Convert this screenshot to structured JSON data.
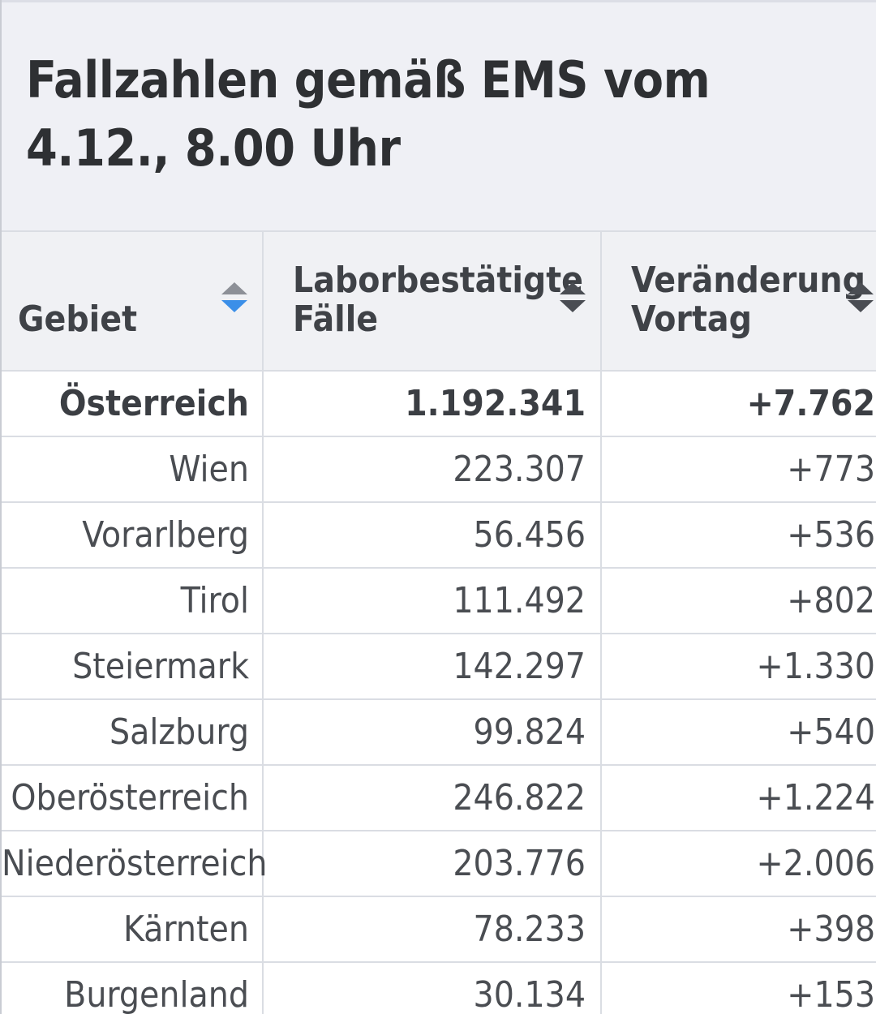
{
  "title": "Fallzahlen gemäß EMS vom 4.12., 8.00 Uhr",
  "table": {
    "headers": {
      "gebiet": "Gebiet",
      "faelle": "Laborbestätigte Fälle",
      "veraenderung": "Veränderung Vortag"
    },
    "sort": {
      "column": "gebiet",
      "direction": "descending",
      "active_color": "#3b8fe8"
    },
    "rows": [
      {
        "gebiet": "Österreich",
        "faelle": "1.192.341",
        "veraenderung": "+7.762",
        "bold": true
      },
      {
        "gebiet": "Wien",
        "faelle": "223.307",
        "veraenderung": "+773"
      },
      {
        "gebiet": "Vorarlberg",
        "faelle": "56.456",
        "veraenderung": "+536"
      },
      {
        "gebiet": "Tirol",
        "faelle": "111.492",
        "veraenderung": "+802"
      },
      {
        "gebiet": "Steiermark",
        "faelle": "142.297",
        "veraenderung": "+1.330"
      },
      {
        "gebiet": "Salzburg",
        "faelle": "99.824",
        "veraenderung": "+540"
      },
      {
        "gebiet": "Oberösterreich",
        "faelle": "246.822",
        "veraenderung": "+1.224"
      },
      {
        "gebiet": "Niederösterreich",
        "faelle": "203.776",
        "veraenderung": "+2.006"
      },
      {
        "gebiet": "Kärnten",
        "faelle": "78.233",
        "veraenderung": "+398"
      },
      {
        "gebiet": "Burgenland",
        "faelle": "30.134",
        "veraenderung": "+153"
      }
    ]
  }
}
